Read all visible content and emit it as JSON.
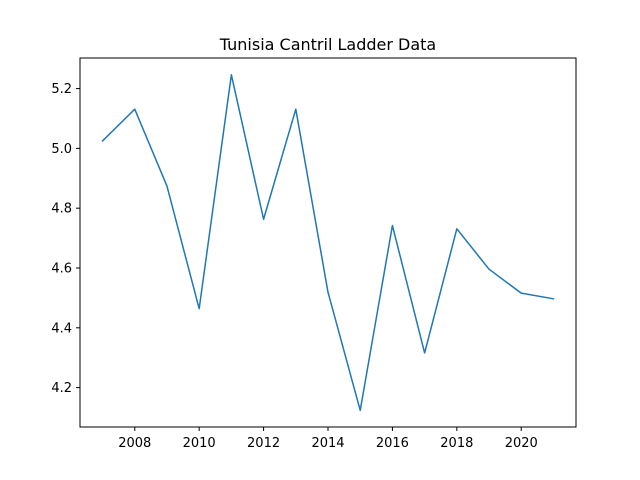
{
  "chart_data": {
    "type": "line",
    "title": "Tunisia Cantril Ladder Data",
    "xlabel": "",
    "ylabel": "",
    "x": [
      2007,
      2008,
      2009,
      2010,
      2011,
      2012,
      2013,
      2014,
      2015,
      2016,
      2017,
      2018,
      2019,
      2020,
      2021
    ],
    "series": [
      {
        "values": [
          5.025,
          5.131,
          4.874,
          4.464,
          5.246,
          4.763,
          5.131,
          4.519,
          4.124,
          4.742,
          4.316,
          4.731,
          4.596,
          4.516,
          4.497
        ],
        "color": "#1f77b4"
      }
    ],
    "xlim": [
      2006.3,
      2021.7
    ],
    "ylim": [
      4.0683,
      5.3022
    ],
    "xticks": [
      2008,
      2010,
      2012,
      2014,
      2016,
      2018,
      2020
    ],
    "xtick_labels": [
      "2008",
      "2010",
      "2012",
      "2014",
      "2016",
      "2018",
      "2020"
    ],
    "yticks": [
      4.2,
      4.4,
      4.6,
      4.8,
      5.0,
      5.2
    ],
    "ytick_labels": [
      "4.2",
      "4.4",
      "4.6",
      "4.8",
      "5.0",
      "5.2"
    ],
    "grid": false,
    "legend": "none"
  }
}
